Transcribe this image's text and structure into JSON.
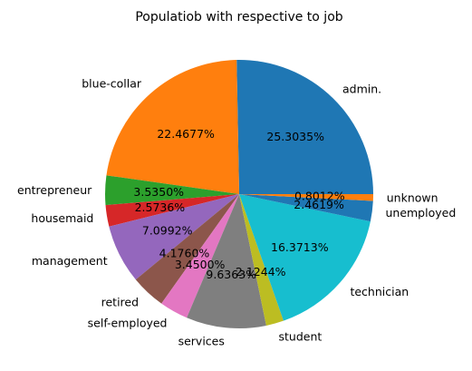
{
  "chart_data": {
    "type": "pie",
    "title": "Populatiob with respective to job",
    "start_angle_deg": 0,
    "direction": "counterclockwise",
    "slices": [
      {
        "label": "admin.",
        "value": 25.3035,
        "pct_text": "25.3035%",
        "color": "#1f77b4"
      },
      {
        "label": "blue-collar",
        "value": 22.4677,
        "pct_text": "22.4677%",
        "color": "#ff7f0e"
      },
      {
        "label": "entrepreneur",
        "value": 3.535,
        "pct_text": "3.5350%",
        "color": "#2ca02c"
      },
      {
        "label": "housemaid",
        "value": 2.5736,
        "pct_text": "2.5736%",
        "color": "#d62728"
      },
      {
        "label": "management",
        "value": 7.0992,
        "pct_text": "7.0992%",
        "color": "#9467bd"
      },
      {
        "label": "retired",
        "value": 4.176,
        "pct_text": "4.1760%",
        "color": "#8c564b"
      },
      {
        "label": "self-employed",
        "value": 3.45,
        "pct_text": "3.4500%",
        "color": "#e377c2"
      },
      {
        "label": "services",
        "value": 9.6363,
        "pct_text": "9.6363%",
        "color": "#7f7f7f"
      },
      {
        "label": "student",
        "value": 2.1244,
        "pct_text": "2.1244%",
        "color": "#bcbd22"
      },
      {
        "label": "technician",
        "value": 16.3713,
        "pct_text": "16.3713%",
        "color": "#17becf"
      },
      {
        "label": "unemployed",
        "value": 2.4619,
        "pct_text": "2.4619%",
        "color": "#1f77b4"
      },
      {
        "label": "unknown",
        "value": 0.8012,
        "pct_text": "0.8012%",
        "color": "#ff7f0e"
      }
    ]
  }
}
